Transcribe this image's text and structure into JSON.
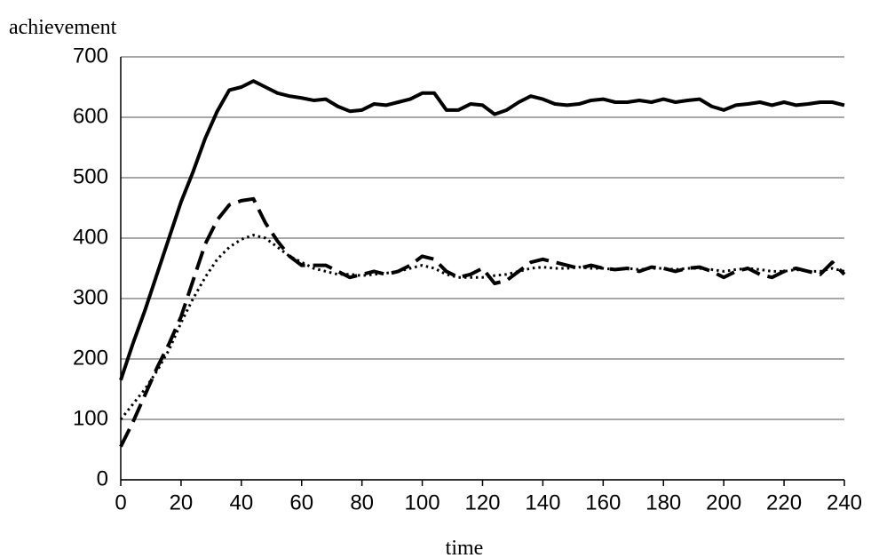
{
  "chart_data": {
    "type": "line",
    "x_label": "time",
    "y_label": "achievement",
    "x": [
      0,
      4,
      8,
      12,
      16,
      20,
      24,
      28,
      32,
      36,
      40,
      44,
      48,
      52,
      56,
      60,
      64,
      68,
      72,
      76,
      80,
      84,
      88,
      92,
      96,
      100,
      104,
      108,
      112,
      116,
      120,
      124,
      128,
      132,
      136,
      140,
      144,
      148,
      152,
      156,
      160,
      164,
      168,
      172,
      176,
      180,
      184,
      188,
      192,
      196,
      200,
      204,
      208,
      212,
      216,
      220,
      224,
      228,
      232,
      236,
      240
    ],
    "series": [
      {
        "color": "#000000",
        "dash": "solid",
        "values": [
          165,
          225,
          280,
          340,
          400,
          460,
          510,
          565,
          610,
          645,
          650,
          660,
          650,
          640,
          635,
          632,
          628,
          630,
          618,
          610,
          612,
          622,
          620,
          625,
          630,
          640,
          640,
          612,
          612,
          622,
          620,
          605,
          612,
          625,
          635,
          630,
          622,
          620,
          622,
          628,
          630,
          625,
          625,
          628,
          625,
          630,
          625,
          628,
          630,
          618,
          612,
          620,
          622,
          625,
          620,
          625,
          620,
          622,
          625,
          625,
          620
        ]
      },
      {
        "color": "#000000",
        "dash": "dashed",
        "values": [
          55,
          95,
          140,
          185,
          225,
          270,
          330,
          390,
          430,
          455,
          462,
          465,
          425,
          395,
          370,
          355,
          355,
          355,
          345,
          335,
          340,
          345,
          340,
          345,
          355,
          370,
          365,
          345,
          335,
          340,
          350,
          325,
          330,
          345,
          360,
          365,
          360,
          355,
          350,
          355,
          350,
          348,
          350,
          345,
          352,
          350,
          345,
          350,
          352,
          345,
          335,
          345,
          350,
          340,
          335,
          345,
          350,
          345,
          340,
          360,
          340
        ]
      },
      {
        "color": "#000000",
        "dash": "dotted",
        "values": [
          100,
          125,
          150,
          180,
          215,
          260,
          300,
          335,
          365,
          385,
          398,
          405,
          400,
          385,
          370,
          360,
          350,
          345,
          340,
          340,
          338,
          340,
          342,
          345,
          350,
          355,
          350,
          340,
          335,
          335,
          335,
          338,
          340,
          345,
          350,
          352,
          350,
          350,
          352,
          350,
          350,
          348,
          350,
          348,
          350,
          350,
          348,
          350,
          350,
          348,
          345,
          348,
          350,
          348,
          345,
          345,
          348,
          345,
          345,
          350,
          345
        ]
      }
    ],
    "xlim": [
      0,
      240
    ],
    "xticks": [
      0,
      20,
      40,
      60,
      80,
      100,
      120,
      140,
      160,
      180,
      200,
      220,
      240
    ],
    "ylim": [
      0,
      700
    ],
    "yticks": [
      0,
      100,
      200,
      300,
      400,
      500,
      600,
      700
    ],
    "grid": true
  }
}
